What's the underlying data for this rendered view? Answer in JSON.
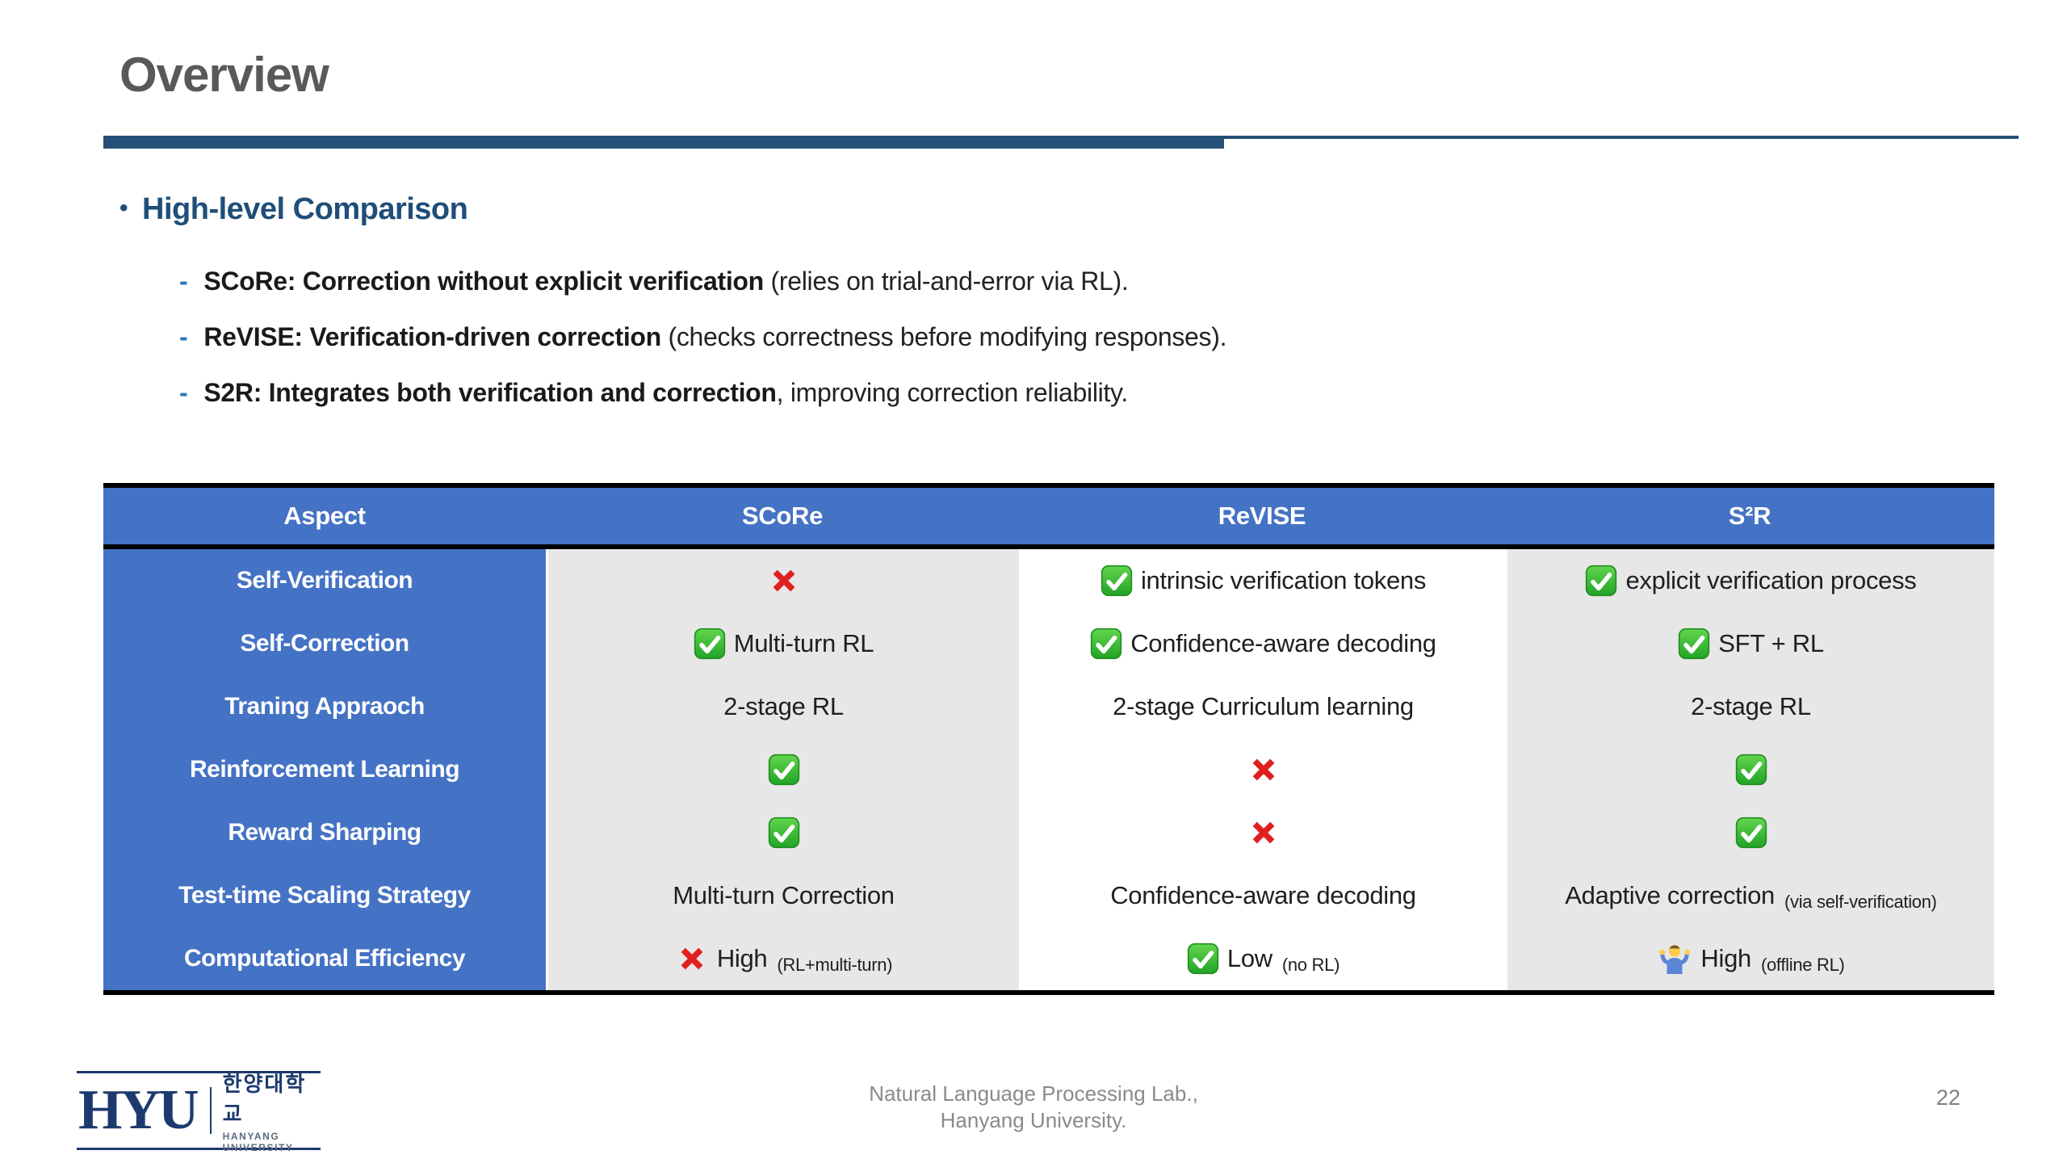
{
  "slide": {
    "title": "Overview",
    "page_number": "22"
  },
  "section": {
    "bullet_marker": "•",
    "heading": "High-level Comparison",
    "items": [
      {
        "dash": "-",
        "bold": "SCoRe: Correction without explicit verification",
        "rest": " (relies on trial-and-error via RL)."
      },
      {
        "dash": "-",
        "bold": "ReVISE: Verification-driven correction",
        "rest": " (checks correctness before modifying responses)."
      },
      {
        "dash": "-",
        "bold": "S2R: Integrates both verification and correction",
        "rest": ", improving correction reliability."
      }
    ]
  },
  "table": {
    "headers": [
      "Aspect",
      "SCoRe",
      "ReVISE",
      "S²R"
    ],
    "rows": [
      {
        "label": "Self-Verification",
        "cells": [
          {
            "icon": "cross-icon",
            "text": "",
            "sub": ""
          },
          {
            "icon": "check-icon",
            "text": "intrinsic verification tokens",
            "sub": ""
          },
          {
            "icon": "check-icon",
            "text": "explicit verification process",
            "sub": ""
          }
        ]
      },
      {
        "label": "Self-Correction",
        "cells": [
          {
            "icon": "check-icon",
            "text": "Multi-turn RL",
            "sub": ""
          },
          {
            "icon": "check-icon",
            "text": "Confidence-aware decoding",
            "sub": ""
          },
          {
            "icon": "check-icon",
            "text": "SFT + RL",
            "sub": ""
          }
        ]
      },
      {
        "label": "Traning Appraoch",
        "cells": [
          {
            "icon": "",
            "text": "2-stage RL",
            "sub": ""
          },
          {
            "icon": "",
            "text": "2-stage Curriculum learning",
            "sub": ""
          },
          {
            "icon": "",
            "text": "2-stage RL",
            "sub": ""
          }
        ]
      },
      {
        "label": "Reinforcement Learning",
        "cells": [
          {
            "icon": "check-icon",
            "text": "",
            "sub": ""
          },
          {
            "icon": "cross-icon",
            "text": "",
            "sub": ""
          },
          {
            "icon": "check-icon",
            "text": "",
            "sub": ""
          }
        ]
      },
      {
        "label": "Reward Sharping",
        "cells": [
          {
            "icon": "check-icon",
            "text": "",
            "sub": ""
          },
          {
            "icon": "cross-icon",
            "text": "",
            "sub": ""
          },
          {
            "icon": "check-icon",
            "text": "",
            "sub": ""
          }
        ]
      },
      {
        "label": "Test-time Scaling Strategy",
        "cells": [
          {
            "icon": "",
            "text": "Multi-turn Correction",
            "sub": ""
          },
          {
            "icon": "",
            "text": "Confidence-aware decoding",
            "sub": ""
          },
          {
            "icon": "",
            "text": "Adaptive correction",
            "sub": "(via self-verification)"
          }
        ]
      },
      {
        "label": "Computational Efficiency",
        "cells": [
          {
            "icon": "cross-icon",
            "text": "High",
            "sub": "(RL+multi-turn)"
          },
          {
            "icon": "check-icon",
            "text": "Low",
            "sub": "(no RL)"
          },
          {
            "icon": "shrug-icon",
            "text": "High",
            "sub": "(offline RL)"
          }
        ]
      }
    ]
  },
  "footer": {
    "logo_acronym": "HYU",
    "logo_korean": "한양대학교",
    "logo_english": "HANYANG UNIVERSITY",
    "center_line1": "Natural Language Processing Lab.,",
    "center_line2": "Hanyang University."
  },
  "colors": {
    "header_blue": "#4472C4",
    "shade_gray": "#E8E7E7",
    "underline_navy": "#265077",
    "heading_blue": "#1F4E79",
    "dash_blue": "#2E74B5",
    "title_gray": "#595959",
    "check_green": "#2EAE2F",
    "cross_red": "#E02020",
    "footer_gray": "#8A8A8A"
  }
}
